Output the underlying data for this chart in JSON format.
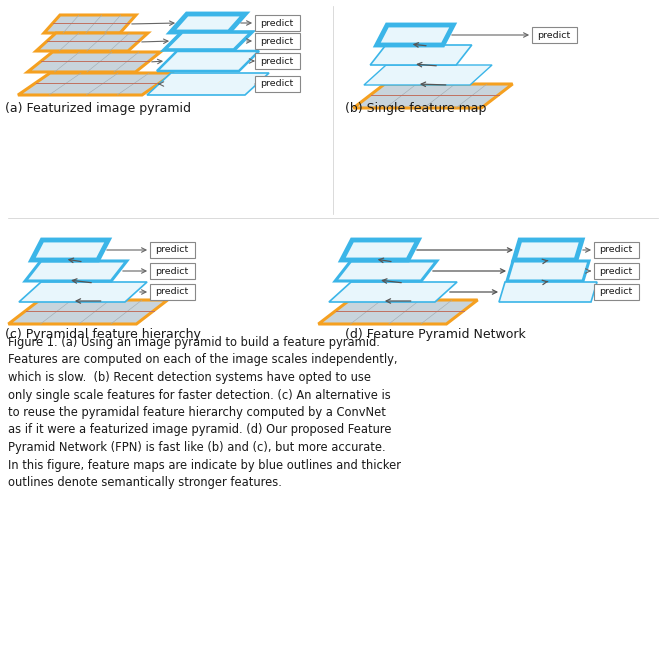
{
  "fig_width": 6.66,
  "fig_height": 6.54,
  "bg_color": "#ffffff",
  "orange_color": "#F5A020",
  "blue_color": "#3BB5E8",
  "blue_fill": "#E8F6FC",
  "arrow_color": "#666666",
  "text_color": "#1a1a1a",
  "caption_a": "(a) Featurized image pyramid",
  "caption_b": "(b) Single feature map",
  "caption_c": "(c) Pyramidal feature hierarchy",
  "caption_d": "(d) Feature Pyramid Network",
  "figure_caption": "Figure 1. (a) Using an image pyramid to build a feature pyramid.\nFeatures are computed on each of the image scales independently,\nwhich is slow.  (b) Recent detection systems have opted to use\nonly single scale features for faster detection. (c) An alternative is\nto reuse the pyramidal feature hierarchy computed by a ConvNet\nas if it were a featurized image pyramid. (d) Our proposed Feature\nPyramid Network (FPN) is fast like (b) and (c), but more accurate.\nIn this figure, feature maps are indicate by blue outlines and thicker\noutlines denote semantically stronger features."
}
